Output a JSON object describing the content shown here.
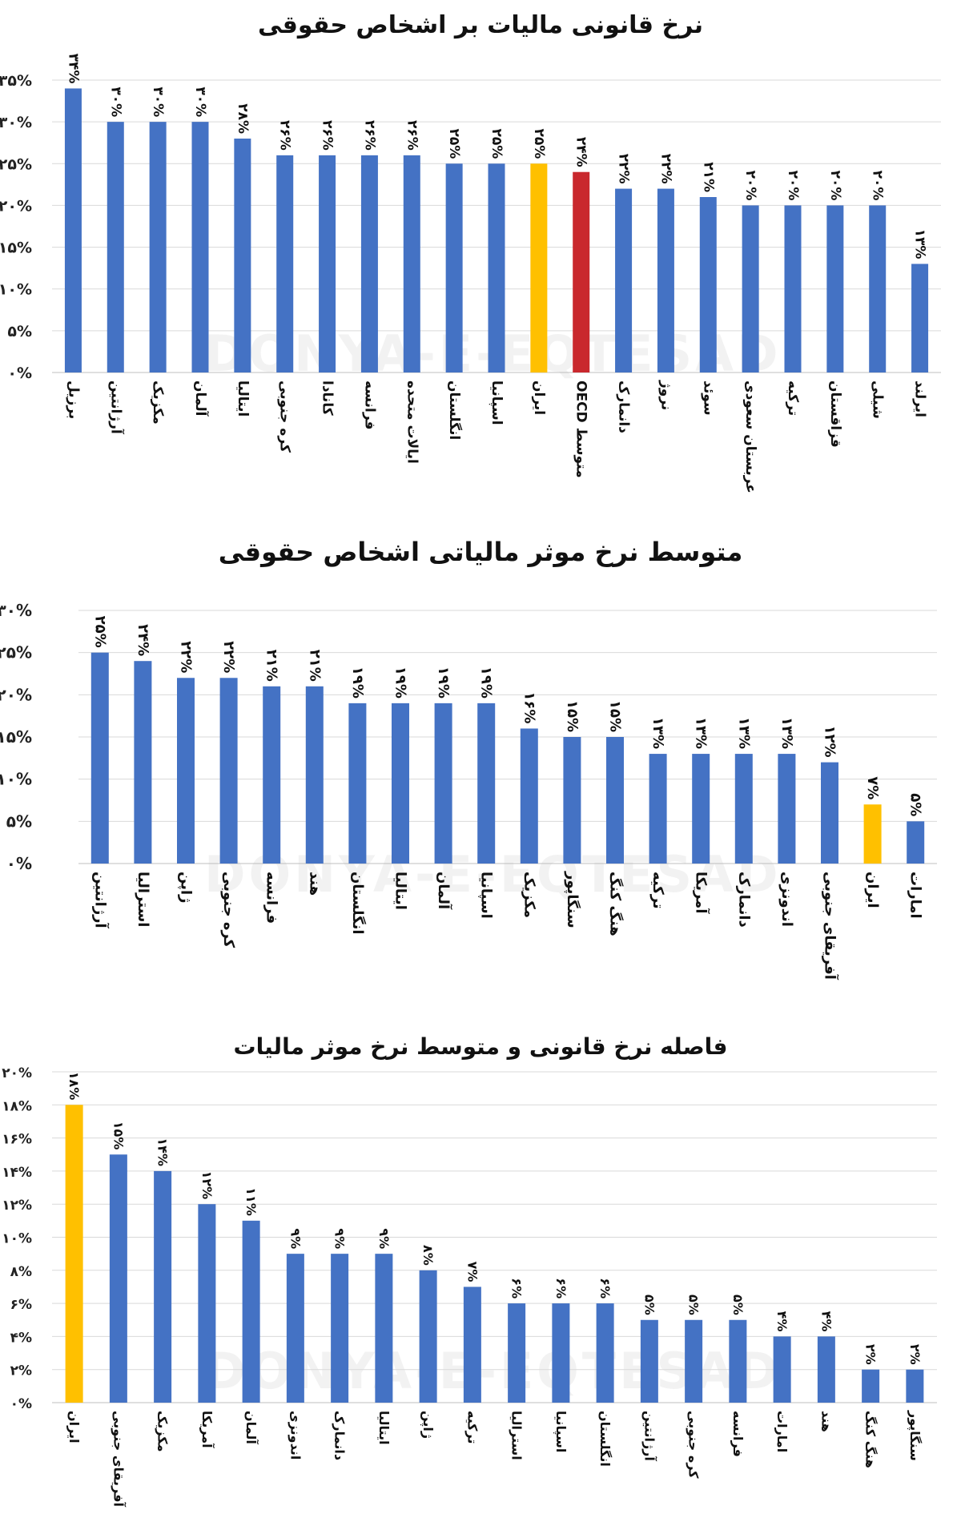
{
  "watermark": "DONYA-E-EQTESAD",
  "colors": {
    "bar": "#4472C4",
    "iran": "#FFC000",
    "oecd": "#C9282D",
    "grid": "#D9D9D9"
  },
  "chart_data": [
    {
      "type": "bar",
      "title": "نرخ قانونی مالیات بر اشخاص حقوقی",
      "ylim": [
        0,
        35
      ],
      "yticks": [
        0,
        5,
        10,
        15,
        20,
        25,
        30,
        35
      ],
      "ytick_labels": [
        "۰%",
        "۵%",
        "۱۰%",
        "۱۵%",
        "۲۰%",
        "۲۵%",
        "۳۰%",
        "۳۵%"
      ],
      "categories": [
        "برزیل",
        "آرژانتین",
        "مکزیک",
        "آلمان",
        "ایتالیا",
        "کره جنوبی",
        "کانادا",
        "فرانسه",
        "ایالات متحده",
        "انگلستان",
        "اسپانیا",
        "ایران",
        "متوسط OECD",
        "دانمارک",
        "نروژ",
        "سوئد",
        "عربستان سعودی",
        "ترکیه",
        "قزاقستان",
        "شیلی",
        "ایرلند"
      ],
      "values": [
        34,
        30,
        30,
        30,
        28,
        26,
        26,
        26,
        26,
        25,
        25,
        25,
        24,
        22,
        22,
        21,
        20,
        20,
        20,
        20,
        13
      ],
      "value_labels": [
        "۳۴%",
        "۳۰%",
        "۳۰%",
        "۳۰%",
        "۲۸%",
        "۲۶%",
        "۲۶%",
        "۲۶%",
        "۲۶%",
        "۲۵%",
        "۲۵%",
        "۲۵%",
        "۲۴%",
        "۲۲%",
        "۲۲%",
        "۲۱%",
        "۲۰%",
        "۲۰%",
        "۲۰%",
        "۲۰%",
        "۱۳%"
      ],
      "highlight": {
        "ایران": "iran",
        "متوسط OECD": "oecd"
      },
      "grid": true
    },
    {
      "type": "bar",
      "title": "متوسط نرخ موثر مالیاتی اشخاص حقوقی",
      "ylim": [
        0,
        30
      ],
      "yticks": [
        0,
        5,
        10,
        15,
        20,
        25,
        30
      ],
      "ytick_labels": [
        "۰%",
        "۵%",
        "۱۰%",
        "۱۵%",
        "۲۰%",
        "۲۵%",
        "۳۰%"
      ],
      "categories": [
        "آرژانتین",
        "استرالیا",
        "ژاپن",
        "کره جنوبی",
        "فرانسه",
        "هند",
        "انگلستان",
        "ایتالیا",
        "آلمان",
        "اسپانیا",
        "مکزیک",
        "سنگاپور",
        "هنگ کنگ",
        "ترکیه",
        "آمریکا",
        "دانمارک",
        "اندونزی",
        "آفریقای جنوبی",
        "ایران",
        "امارات"
      ],
      "values": [
        25,
        24,
        22,
        22,
        21,
        21,
        19,
        19,
        19,
        19,
        16,
        15,
        15,
        13,
        13,
        13,
        13,
        12,
        7,
        5
      ],
      "value_labels": [
        "۲۵%",
        "۲۴%",
        "۲۲%",
        "۲۲%",
        "۲۱%",
        "۲۱%",
        "۱۹%",
        "۱۹%",
        "۱۹%",
        "۱۹%",
        "۱۶%",
        "۱۵%",
        "۱۵%",
        "۱۳%",
        "۱۳%",
        "۱۳%",
        "۱۳%",
        "۱۲%",
        "۷%",
        "۵%"
      ],
      "highlight": {
        "ایران": "iran"
      },
      "grid": true
    },
    {
      "type": "bar",
      "title": "فاصله نرخ قانونی و متوسط نرخ موثر مالیات",
      "ylim": [
        0,
        20
      ],
      "yticks": [
        0,
        2,
        4,
        6,
        8,
        10,
        12,
        14,
        16,
        18,
        20
      ],
      "ytick_labels": [
        "۰%",
        "۲%",
        "۴%",
        "۶%",
        "۸%",
        "۱۰%",
        "۱۲%",
        "۱۴%",
        "۱۶%",
        "۱۸%",
        "۲۰%"
      ],
      "categories": [
        "ایران",
        "آفریقای جنوبی",
        "مکزیک",
        "آمریکا",
        "آلمان",
        "اندونزی",
        "دانمارک",
        "ایتالیا",
        "ژاپن",
        "ترکیه",
        "استرالیا",
        "اسپانیا",
        "انگلستان",
        "آرژانتین",
        "کره جنوبی",
        "فرانسه",
        "امارات",
        "هند",
        "هنگ کنگ",
        "سنگاپور"
      ],
      "values": [
        18,
        15,
        14,
        12,
        11,
        9,
        9,
        9,
        8,
        7,
        6,
        6,
        6,
        5,
        5,
        5,
        4,
        4,
        2,
        2
      ],
      "value_labels": [
        "۱۸%",
        "۱۵%",
        "۱۴%",
        "۱۲%",
        "۱۱%",
        "۹%",
        "۹%",
        "۹%",
        "۸%",
        "۷%",
        "۶%",
        "۶%",
        "۶%",
        "۵%",
        "۵%",
        "۵%",
        "۴%",
        "۴%",
        "۲%",
        "۲%"
      ],
      "highlight": {
        "ایران": "iran"
      },
      "grid": true
    }
  ]
}
